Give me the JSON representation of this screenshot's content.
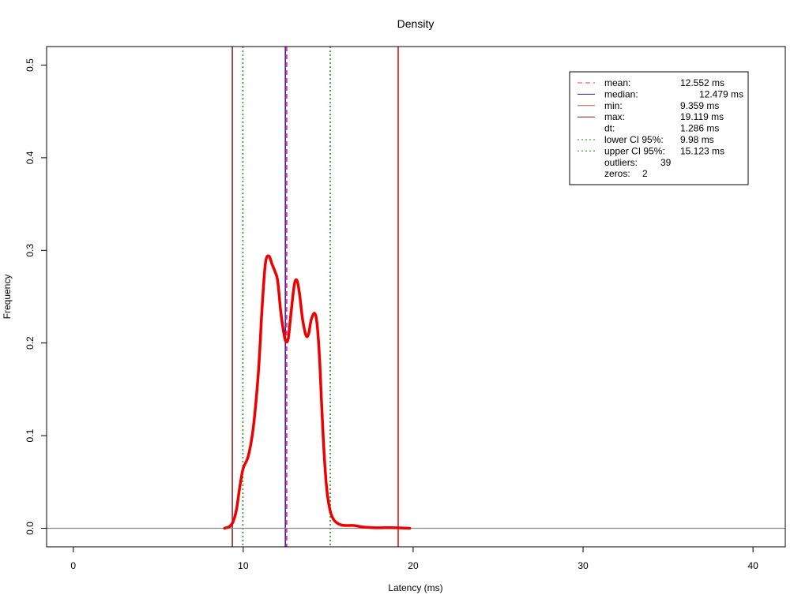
{
  "chart_data": {
    "type": "line",
    "title": "Density",
    "xlabel": "Latency (ms)",
    "ylabel": "Frequency",
    "xlim": [
      -1.57,
      41.9
    ],
    "ylim": [
      -0.02,
      0.52
    ],
    "xticks": [
      0,
      10,
      20,
      30,
      40
    ],
    "yticks": [
      0.0,
      0.1,
      0.2,
      0.3,
      0.4,
      0.5
    ],
    "xtick_labels": [
      "0",
      "10",
      "20",
      "30",
      "40"
    ],
    "ytick_labels": [
      "0.0",
      "0.1",
      "0.2",
      "0.3",
      "0.4",
      "0.5"
    ],
    "grid": false,
    "legend_position": "top-right",
    "density": {
      "color": "#ee0000",
      "x": [
        8.9,
        9.2,
        9.4,
        9.6,
        9.8,
        10.0,
        10.3,
        10.6,
        10.9,
        11.1,
        11.3,
        11.5,
        11.7,
        11.85,
        12.0,
        12.1,
        12.2,
        12.35,
        12.5,
        12.65,
        12.8,
        13.0,
        13.15,
        13.3,
        13.5,
        13.7,
        13.85,
        14.0,
        14.2,
        14.35,
        14.5,
        14.7,
        14.9,
        15.1,
        15.3,
        15.5,
        15.7,
        16.0,
        16.5,
        17.0,
        17.5,
        18.0,
        18.5,
        19.0,
        19.5,
        19.8
      ],
      "y": [
        0.0,
        0.002,
        0.007,
        0.02,
        0.045,
        0.065,
        0.078,
        0.11,
        0.17,
        0.235,
        0.285,
        0.294,
        0.285,
        0.278,
        0.27,
        0.255,
        0.235,
        0.215,
        0.202,
        0.205,
        0.23,
        0.262,
        0.268,
        0.255,
        0.225,
        0.208,
        0.21,
        0.225,
        0.232,
        0.22,
        0.18,
        0.1,
        0.045,
        0.02,
        0.01,
        0.006,
        0.004,
        0.003,
        0.003,
        0.0015,
        0.0008,
        0.0005,
        0.0007,
        0.0005,
        0.0003,
        0.0
      ]
    },
    "reference_lines": [
      {
        "name": "lower CI 95%",
        "x": 9.98,
        "color": "#1a8a1a",
        "style": "dotted"
      },
      {
        "name": "upper CI 95%",
        "x": 15.123,
        "color": "#1a8a1a",
        "style": "dotted"
      },
      {
        "name": "min",
        "x": 9.359,
        "color": "#8b1a1a",
        "style": "solid"
      },
      {
        "name": "max",
        "x": 19.119,
        "color": "#cc1111",
        "style": "solid"
      },
      {
        "name": "median",
        "x": 12.479,
        "color": "#1a1aaa",
        "style": "solid"
      },
      {
        "name": "mean",
        "x": 12.552,
        "color": "#ff3377",
        "style": "dashed"
      }
    ],
    "baseline": {
      "y": 0,
      "color": "#888888"
    },
    "legend": [
      {
        "key": "mean",
        "label": "mean:",
        "value": "12.552 ms",
        "color": "#ff3377",
        "style": "dashed"
      },
      {
        "key": "median",
        "label": "median:",
        "value": "12.479 ms",
        "color": "#1a1aaa",
        "style": "solid"
      },
      {
        "key": "min",
        "label": "min:",
        "value": "9.359 ms",
        "color": "#cc5555",
        "style": "solid"
      },
      {
        "key": "max",
        "label": "max:",
        "value": "19.119 ms",
        "color": "#8b1a1a",
        "style": "solid"
      },
      {
        "key": "dt",
        "label": "dt:",
        "value": "1.286 ms",
        "color": "",
        "style": "none"
      },
      {
        "key": "lower-ci",
        "label": "lower CI 95%:",
        "value": "9.98 ms",
        "color": "#1a8a1a",
        "style": "dotted"
      },
      {
        "key": "upper-ci",
        "label": "upper CI 95%:",
        "value": "15.123 ms",
        "color": "#1a8a1a",
        "style": "dotted"
      },
      {
        "key": "outliers",
        "label": "outliers:",
        "value": "39",
        "color": "",
        "style": "none"
      },
      {
        "key": "zeros",
        "label": "zeros:",
        "value": "2",
        "color": "",
        "style": "none"
      }
    ]
  }
}
